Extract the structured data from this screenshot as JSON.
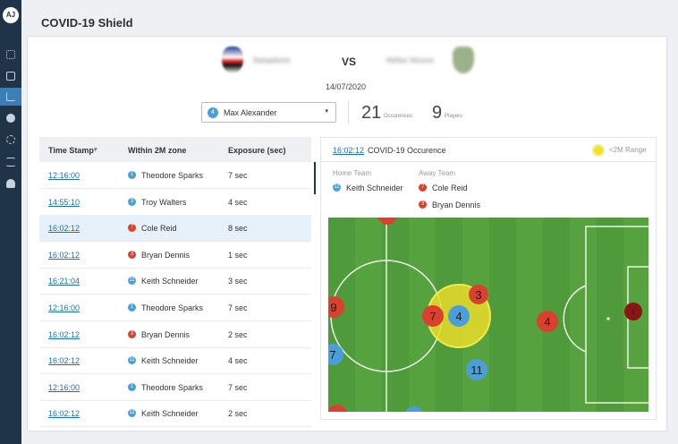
{
  "sidebar": {
    "avatar": "AJ"
  },
  "header": {
    "title": "COVID-19 Shield"
  },
  "match": {
    "home_team": "Sampdoria",
    "vs": "VS",
    "away_team": "Hellas Verona",
    "date": "14/07/2020"
  },
  "filter": {
    "player_badge": 4,
    "player": "Max Alexander",
    "occurrences": 21,
    "occurrences_label": "Occurences",
    "players": 9,
    "players_label": "Players"
  },
  "table": {
    "columns": [
      "Time Stamp",
      "Within 2M zone",
      "Exposure (sec)"
    ],
    "rows": [
      {
        "time": "12:16:00",
        "badge": 1,
        "color": "#4a9fd8",
        "name": "Theodore Sparks",
        "exposure": "7 sec"
      },
      {
        "time": "14:55:10",
        "badge": 3,
        "color": "#4a9fd8",
        "name": "Troy Walters",
        "exposure": "4 sec"
      },
      {
        "time": "16:02:12",
        "badge": 7,
        "color": "#d9412e",
        "name": "Cole Reid",
        "exposure": "8 sec"
      },
      {
        "time": "16:02:12",
        "badge": 3,
        "color": "#d9412e",
        "name": "Bryan Dennis",
        "exposure": "1 sec"
      },
      {
        "time": "16:21:04",
        "badge": 11,
        "color": "#4a9fd8",
        "name": "Keith Schneider",
        "exposure": "3 sec"
      },
      {
        "time": "12:16:00",
        "badge": 1,
        "color": "#4a9fd8",
        "name": "Theodore Sparks",
        "exposure": "7 sec"
      },
      {
        "time": "16:02:12",
        "badge": 3,
        "color": "#d9412e",
        "name": "Bryan Dennis",
        "exposure": "2 sec"
      },
      {
        "time": "16:02:12",
        "badge": 11,
        "color": "#4a9fd8",
        "name": "Keith Schneider",
        "exposure": "4 sec"
      },
      {
        "time": "12:16:00",
        "badge": 1,
        "color": "#4a9fd8",
        "name": "Theodore Sparks",
        "exposure": "7 sec"
      },
      {
        "time": "16:02:12",
        "badge": 11,
        "color": "#4a9fd8",
        "name": "Keith Schneider",
        "exposure": "2 sec"
      }
    ]
  },
  "detail": {
    "time": "16:02:12",
    "title": "COVID-19 Occurence",
    "legend": "<2M Range",
    "home_label": "Home Team",
    "away_label": "Away Team",
    "home": [
      {
        "number": 11,
        "color": "#4a9fd8",
        "name": "Keith Schneider"
      }
    ],
    "away": [
      {
        "number": 7,
        "color": "#d9412e",
        "name": "Cole Reid"
      },
      {
        "number": 3,
        "color": "#d9412e",
        "name": "Bryan Dennis"
      }
    ]
  },
  "field": {
    "players": [
      {
        "number": 9,
        "color": "#d9412e"
      },
      {
        "number": 7,
        "color": "#4a9fd8"
      },
      {
        "number": 7,
        "color": "#d9412e"
      },
      {
        "number": 4,
        "color": "#4a9fd8"
      },
      {
        "number": 3,
        "color": "#d9412e"
      },
      {
        "number": 11,
        "color": "#4a9fd8"
      },
      {
        "number": 4,
        "color": "#d9412e"
      },
      {
        "number": 1,
        "color": "#8b1414"
      }
    ]
  }
}
